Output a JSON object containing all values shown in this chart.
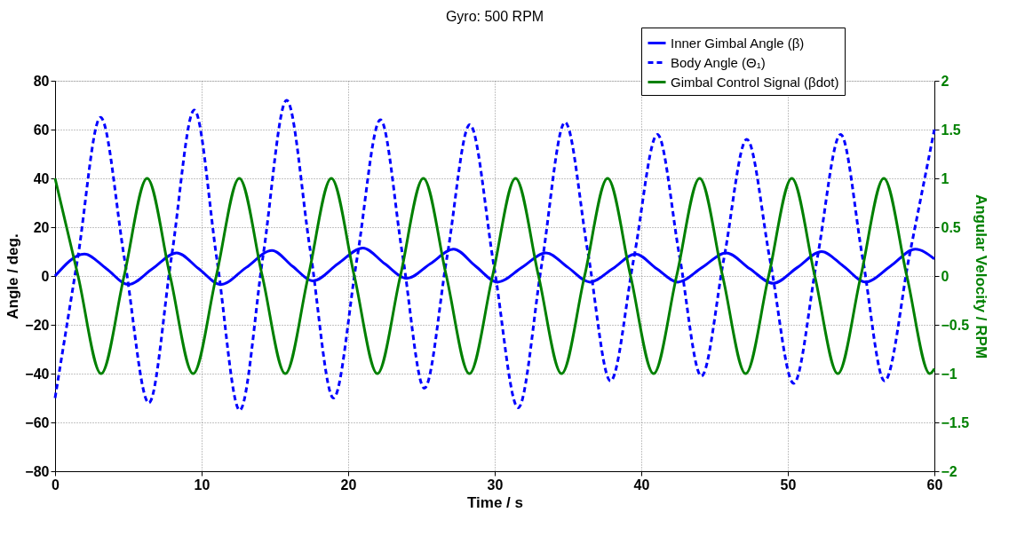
{
  "chart_data": {
    "type": "line",
    "title": "Gyro: 500 RPM",
    "xlabel": "Time / s",
    "ylabel": "Angle / deg.",
    "y2label": "Angular Velocity / RPM",
    "xlim": [
      0,
      60
    ],
    "xticks": [
      0,
      10,
      20,
      30,
      40,
      50,
      60
    ],
    "ylim": [
      -80,
      80
    ],
    "yticks": [
      -80,
      -60,
      -40,
      -20,
      0,
      20,
      40,
      60,
      80
    ],
    "y2lim": [
      -2,
      2
    ],
    "y2ticks": [
      -2,
      -1.5,
      -1,
      -0.5,
      0,
      0.5,
      1,
      1.5,
      2
    ],
    "grid": true,
    "legend": "top right",
    "marker": "none",
    "series": [
      {
        "name": "Inner Gimbal Angle (β)",
        "color": "#0000ff",
        "line_style": "solid",
        "x": [
          0,
          2.0,
          3.5,
          5.0,
          6.65,
          8.3,
          9.8,
          11.3,
          13.05,
          14.8,
          16.2,
          17.6,
          19.3,
          21.0,
          22.5,
          24.0,
          25.6,
          27.2,
          28.7,
          30.2,
          31.85,
          33.5,
          35.0,
          36.5,
          38.05,
          39.6,
          41.05,
          42.5,
          44.15,
          45.8,
          47.4,
          49.0,
          50.65,
          52.3,
          53.8,
          55.3,
          57.0,
          58.7,
          60
        ],
        "values": [
          0,
          9,
          3,
          -3.5,
          3,
          9.5,
          3,
          -3.5,
          3.5,
          10.5,
          4,
          -2,
          5,
          11.5,
          5,
          -1,
          5,
          11,
          4,
          -2.5,
          3.5,
          9.5,
          3.5,
          -2.5,
          3,
          9,
          3,
          -2.5,
          3.5,
          9.5,
          3,
          -3,
          3.5,
          10,
          4,
          -2.5,
          4,
          11,
          7
        ]
      },
      {
        "name": "Body Angle (Θ₁)",
        "color": "#0000ff",
        "line_style": "dashed",
        "x": [
          0,
          1.55,
          3.1,
          4.75,
          6.4,
          7.95,
          9.5,
          11.05,
          12.6,
          14.2,
          15.8,
          17.4,
          19.0,
          20.6,
          22.2,
          23.7,
          25.2,
          26.75,
          28.3,
          29.95,
          31.6,
          33.2,
          34.8,
          36.35,
          37.9,
          39.5,
          41.1,
          42.6,
          44.1,
          45.65,
          47.2,
          48.8,
          50.4,
          52.0,
          53.6,
          55.1,
          56.6,
          58.3,
          60
        ],
        "values": [
          -50,
          7.5,
          65,
          6.5,
          -52,
          8,
          68,
          6.5,
          -55,
          8.5,
          72,
          11,
          -50,
          7,
          64,
          9,
          -46,
          8,
          62,
          4,
          -54,
          4.5,
          63,
          10,
          -43,
          7.5,
          58,
          8.5,
          -41,
          7.5,
          56,
          6,
          -44,
          7,
          58,
          7.5,
          -43,
          8.5,
          60
        ]
      },
      {
        "name": "Gimbal Control Signal (βdot)",
        "color": "#008000",
        "line_style": "solid",
        "axis": "y2",
        "x": [
          0,
          1.57,
          3.14,
          4.71,
          6.28,
          7.85,
          9.42,
          11.0,
          12.57,
          14.14,
          15.71,
          17.28,
          18.85,
          20.42,
          21.99,
          23.56,
          25.13,
          26.7,
          28.27,
          29.85,
          31.42,
          32.99,
          34.56,
          36.13,
          37.7,
          39.27,
          40.84,
          42.41,
          43.98,
          45.55,
          47.12,
          48.69,
          50.27,
          51.84,
          53.41,
          54.98,
          56.55,
          58.12,
          59.69,
          60
        ],
        "values": [
          1,
          0,
          -1,
          0,
          1,
          0,
          -1,
          0,
          1,
          0,
          -1,
          0,
          1,
          0,
          -1,
          0,
          1,
          0,
          -1,
          0,
          1,
          0,
          -1,
          0,
          1,
          0,
          -1,
          0,
          1,
          0,
          -1,
          0,
          1,
          0,
          -1,
          0,
          1,
          0,
          -1,
          -0.95
        ]
      }
    ]
  }
}
